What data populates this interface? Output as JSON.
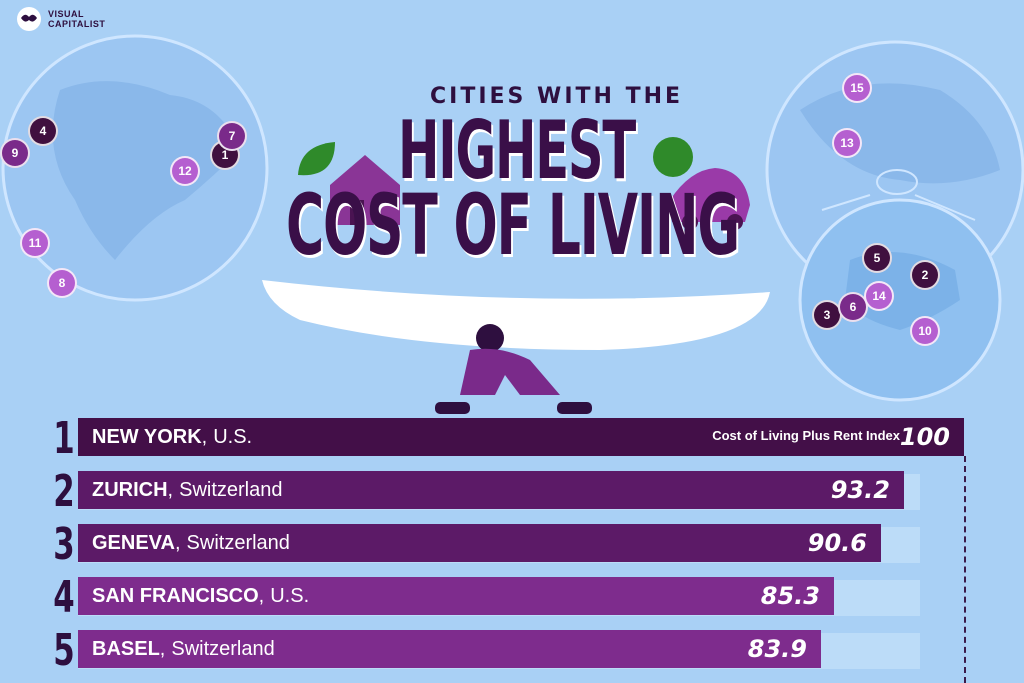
{
  "brand": {
    "line1": "VISUAL",
    "line2": "CAPITALIST"
  },
  "title": {
    "line1": "CITIES WITH THE",
    "line2": "HIGHEST",
    "line3": "COST OF LIVING"
  },
  "map_markers": [
    "1",
    "2",
    "3",
    "4",
    "5",
    "6",
    "7",
    "8",
    "9",
    "10",
    "11",
    "12",
    "13",
    "14",
    "15"
  ],
  "colors": {
    "bar_dark": "#430f48",
    "bar_mid": "#5c1a67",
    "bar_light": "#7e2c8d",
    "background": "#a9d0f5",
    "track": "#bcdcf8"
  },
  "index_label": "Cost of Living Plus Rent Index",
  "chart_data": {
    "type": "bar",
    "orientation": "horizontal",
    "title": "CITIES WITH THE HIGHEST COST OF LIVING",
    "xlabel": "Cost of Living Plus Rent Index",
    "xlim": [
      0,
      100
    ],
    "ranks": [
      "1",
      "2",
      "3",
      "4",
      "5"
    ],
    "cities": [
      "NEW YORK",
      "ZURICH",
      "GENEVA",
      "SAN FRANCISCO",
      "BASEL"
    ],
    "countries": [
      "U.S.",
      "Switzerland",
      "Switzerland",
      "U.S.",
      "Switzerland"
    ],
    "values": [
      100,
      93.2,
      90.6,
      85.3,
      83.9
    ],
    "value_labels": [
      "100",
      "93.2",
      "90.6",
      "85.3",
      "83.9"
    ]
  }
}
